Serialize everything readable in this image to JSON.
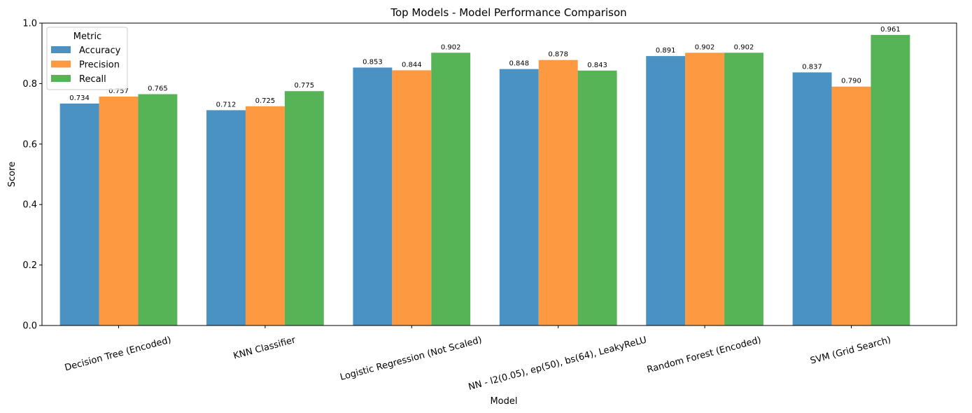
{
  "chart_data": {
    "type": "bar",
    "title": "Top Models - Model Performance Comparison",
    "xlabel": "Model",
    "ylabel": "Score",
    "ylim": [
      0,
      1.0
    ],
    "yticks": [
      0.0,
      0.2,
      0.4,
      0.6,
      0.8,
      1.0
    ],
    "ytick_labels": [
      "0.0",
      "0.2",
      "0.4",
      "0.6",
      "0.8",
      "1.0"
    ],
    "grid": false,
    "legend": {
      "title": "Metric",
      "placement": "top-left"
    },
    "categories": [
      "Decision Tree (Encoded)",
      "KNN Classifier",
      "Logistic Regression (Not Scaled)",
      "NN - l2(0.05), ep(50), bs(64), LeakyReLU",
      "Random Forest (Encoded)",
      "SVM (Grid Search)"
    ],
    "series": [
      {
        "name": "Accuracy",
        "color": "#4a92c3",
        "values": [
          0.734,
          0.712,
          0.853,
          0.848,
          0.891,
          0.837
        ],
        "labels": [
          "0.734",
          "0.712",
          "0.853",
          "0.848",
          "0.891",
          "0.837"
        ]
      },
      {
        "name": "Precision",
        "color": "#fd9941",
        "values": [
          0.757,
          0.725,
          0.844,
          0.878,
          0.902,
          0.79
        ],
        "labels": [
          "0.757",
          "0.725",
          "0.844",
          "0.878",
          "0.902",
          "0.790"
        ]
      },
      {
        "name": "Recall",
        "color": "#56b356",
        "values": [
          0.765,
          0.775,
          0.902,
          0.843,
          0.902,
          0.961
        ],
        "labels": [
          "0.765",
          "0.775",
          "0.902",
          "0.843",
          "0.902",
          "0.961"
        ]
      }
    ]
  }
}
